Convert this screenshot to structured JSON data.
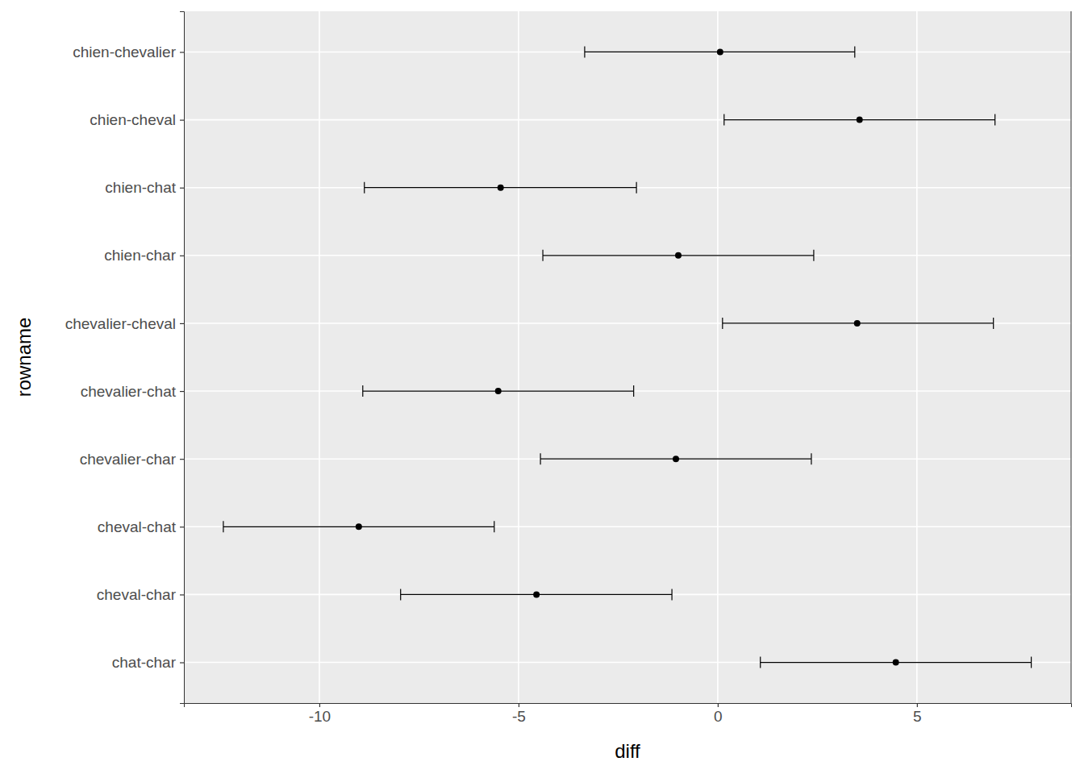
{
  "chart_data": {
    "type": "errorbar",
    "orientation": "horizontal",
    "x_label": "diff",
    "y_label": "rowname",
    "categories": [
      "chien-chevalier",
      "chien-cheval",
      "chien-chat",
      "chien-char",
      "chevalier-cheval",
      "chevalier-chat",
      "chevalier-char",
      "cheval-chat",
      "cheval-char",
      "chat-char"
    ],
    "values": [
      0.06,
      3.56,
      -5.45,
      -0.99,
      3.5,
      -5.51,
      -1.05,
      -9.01,
      -4.55,
      4.47
    ],
    "lower": [
      -3.34,
      0.16,
      -8.87,
      -4.39,
      0.12,
      -8.91,
      -4.45,
      -12.41,
      -7.96,
      1.07
    ],
    "upper": [
      3.44,
      6.96,
      -2.04,
      2.41,
      6.92,
      -2.11,
      2.35,
      -5.61,
      -1.15,
      7.87
    ],
    "color": "#000000",
    "xlim": [
      -13.4,
      8.87
    ],
    "xticks": [
      -10,
      -5,
      0,
      5
    ],
    "grid": true
  }
}
